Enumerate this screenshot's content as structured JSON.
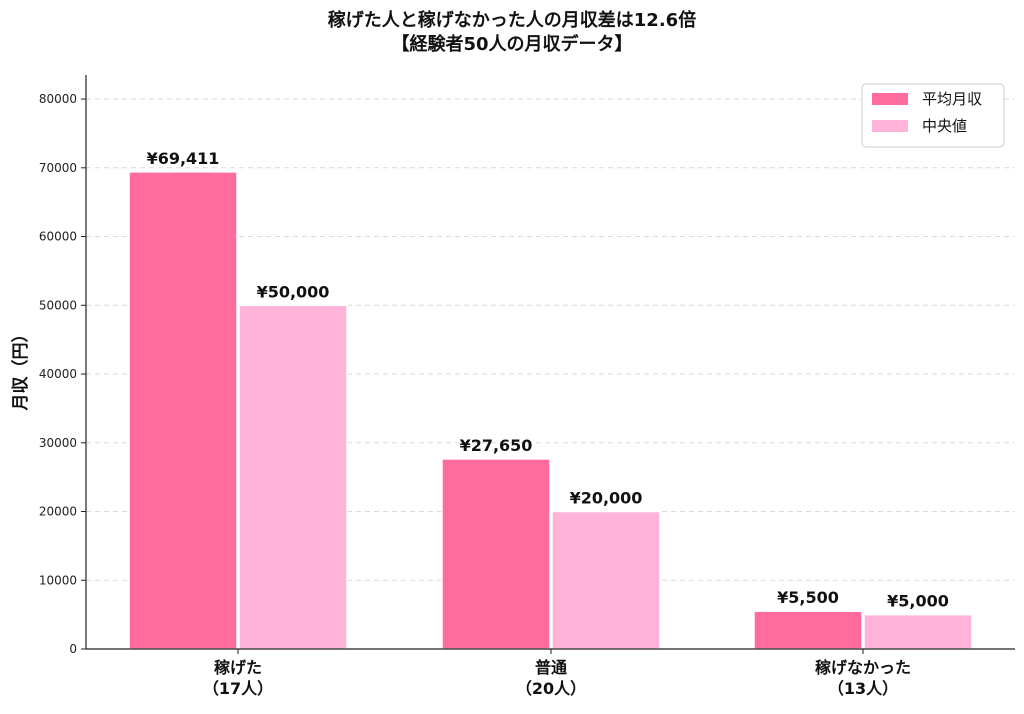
{
  "chart_data": {
    "type": "bar",
    "title": [
      "稼げた人と稼げなかった人の月収差は12.6倍",
      "【経験者50人の月収データ】"
    ],
    "ylabel": "月収（円）",
    "xlabel": "",
    "categories": [
      [
        "稼げた",
        "（17人）"
      ],
      [
        "普通",
        "（20人）"
      ],
      [
        "稼げなかった",
        "（13人）"
      ]
    ],
    "series": [
      {
        "name": "平均月収",
        "values": [
          69411,
          27650,
          5500
        ],
        "labels": [
          "¥69,411",
          "¥27,650",
          "¥5,500"
        ],
        "color": "#FF6B9D"
      },
      {
        "name": "中央値",
        "values": [
          50000,
          20000,
          5000
        ],
        "labels": [
          "¥50,000",
          "¥20,000",
          "¥5,000"
        ],
        "color": "#FFB3D9"
      }
    ],
    "ylim": [
      0,
      83500
    ],
    "yticks": [
      0,
      10000,
      20000,
      30000,
      40000,
      50000,
      60000,
      70000,
      80000
    ],
    "ytick_labels": [
      "0",
      "10000",
      "20000",
      "30000",
      "40000",
      "50000",
      "60000",
      "70000",
      "80000"
    ],
    "grid": "y-dashed",
    "legend_position": "top-right"
  }
}
